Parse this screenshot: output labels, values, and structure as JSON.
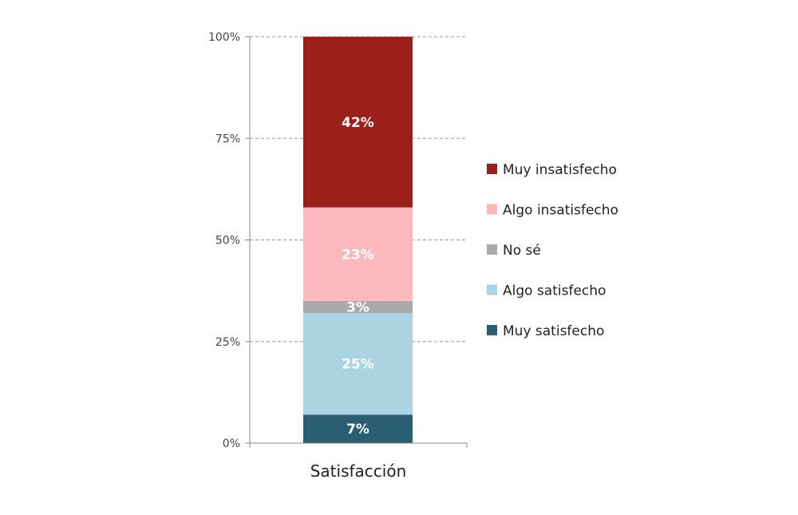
{
  "chart_data": {
    "type": "bar",
    "stacked": true,
    "categories": [
      "Satisfacción"
    ],
    "series": [
      {
        "name": "Muy satisfecho",
        "values": [
          7
        ],
        "label": "7%",
        "color": "#2a5e73"
      },
      {
        "name": "Algo satisfecho",
        "values": [
          25
        ],
        "label": "25%",
        "color": "#abd3e1"
      },
      {
        "name": "No sé",
        "values": [
          3
        ],
        "label": "3%",
        "color": "#a9a9a9"
      },
      {
        "name": "Algo insatisfecho",
        "values": [
          23
        ],
        "label": "23%",
        "color": "#fcb9bd"
      },
      {
        "name": "Muy insatisfecho",
        "values": [
          42
        ],
        "label": "42%",
        "color": "#9b1f1a"
      }
    ],
    "legend_order": [
      "Muy insatisfecho",
      "Algo insatisfecho",
      "No sé",
      "Algo satisfecho",
      "Muy satisfecho"
    ],
    "yticks": [
      "0%",
      "25%",
      "50%",
      "75%",
      "100%"
    ],
    "ylim": [
      0,
      100
    ],
    "grid": true,
    "legend_position": "right"
  }
}
